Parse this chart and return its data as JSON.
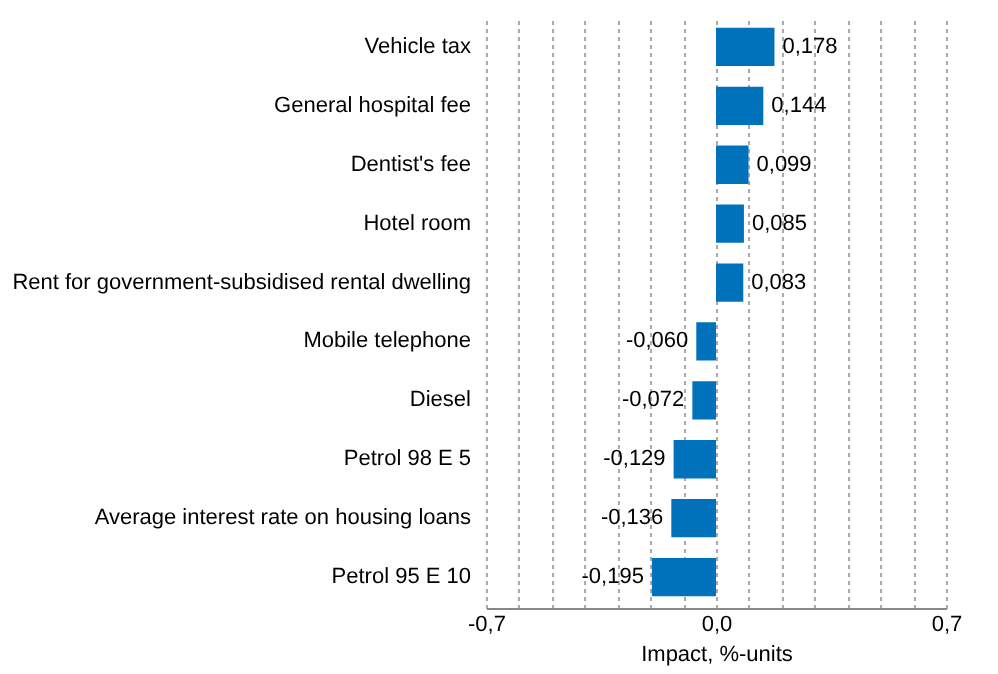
{
  "chart_data": {
    "type": "bar",
    "orientation": "horizontal",
    "xlabel": "Impact, %-units",
    "categories": [
      "Vehicle tax",
      "General hospital fee",
      "Dentist's fee",
      "Hotel room",
      "Rent for government-subsidised rental dwelling",
      "Mobile telephone",
      "Diesel",
      "Petrol 98 E 5",
      "Average interest rate on housing loans",
      "Petrol 95 E 10"
    ],
    "values": [
      0.178,
      0.144,
      0.099,
      0.085,
      0.083,
      -0.06,
      -0.072,
      -0.129,
      -0.136,
      -0.195
    ],
    "value_labels": [
      "0,178",
      "0,144",
      "0,099",
      "0,085",
      "0,083",
      "-0,060",
      "-0,072",
      "-0,129",
      "-0,136",
      "-0,195"
    ],
    "color": "#0072bc",
    "xlim": [
      -0.7,
      0.7
    ],
    "xticks": [
      {
        "value": -0.7,
        "label": "-0,7"
      },
      {
        "value": -0.6,
        "label": null
      },
      {
        "value": -0.5,
        "label": null
      },
      {
        "value": -0.4,
        "label": null
      },
      {
        "value": -0.3,
        "label": null
      },
      {
        "value": -0.2,
        "label": null
      },
      {
        "value": -0.1,
        "label": null
      },
      {
        "value": 0.0,
        "label": "0,0"
      },
      {
        "value": 0.1,
        "label": null
      },
      {
        "value": 0.2,
        "label": null
      },
      {
        "value": 0.3,
        "label": null
      },
      {
        "value": 0.4,
        "label": null
      },
      {
        "value": 0.5,
        "label": null
      },
      {
        "value": 0.6,
        "label": null
      },
      {
        "value": 0.7,
        "label": "0,7"
      }
    ],
    "grid": "x"
  }
}
